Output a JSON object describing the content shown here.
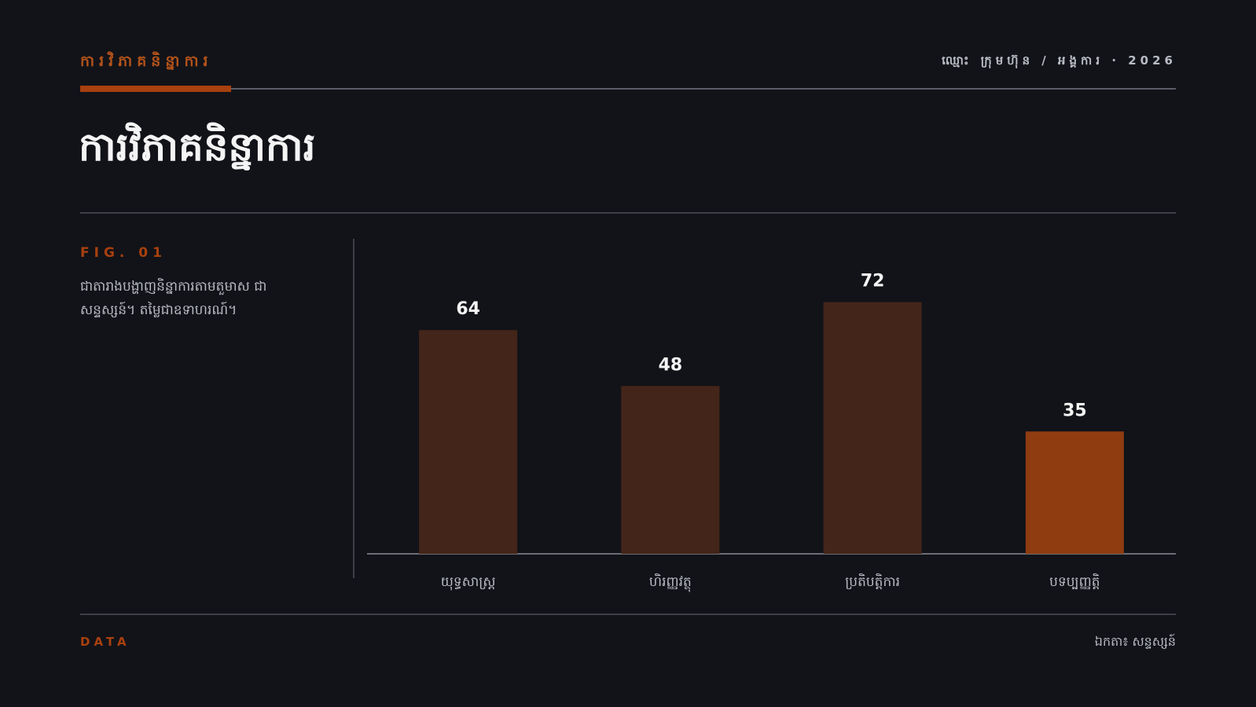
{
  "header": {
    "kicker": "ការវិភាគនិន្នាការ",
    "meta": "ឈ្មោះ ក្រុមហ៊ុន / អង្គការ · 2026",
    "title": "ការវិភាគនិន្នាការ"
  },
  "figure": {
    "label": "FIG. 01",
    "description": "ជាតារាងបង្ហាញនិន្នាការតាមតួមាស ជាសន្ទស្សន៍។ តម្លៃជាឧទាហរណ៍។"
  },
  "footer": {
    "left": "DATA",
    "right": "ឯកតា៖ សន្ទស្សន៍"
  },
  "colors": {
    "background": "#121318",
    "accent": "#a8400f",
    "bar": "#44251a",
    "bar_highlight": "#8f3c10"
  },
  "chart_data": {
    "type": "bar",
    "categories": [
      "យុទ្ធសាស្ត្រ",
      "ហិរញ្ញវត្ថុ",
      "ប្រតិបត្តិការ",
      "បទប្បញ្ញត្តិ"
    ],
    "values": [
      64,
      48,
      72,
      35
    ],
    "highlight_index": 3,
    "ylim": [
      0,
      80
    ],
    "grid": false,
    "legend": "none"
  }
}
